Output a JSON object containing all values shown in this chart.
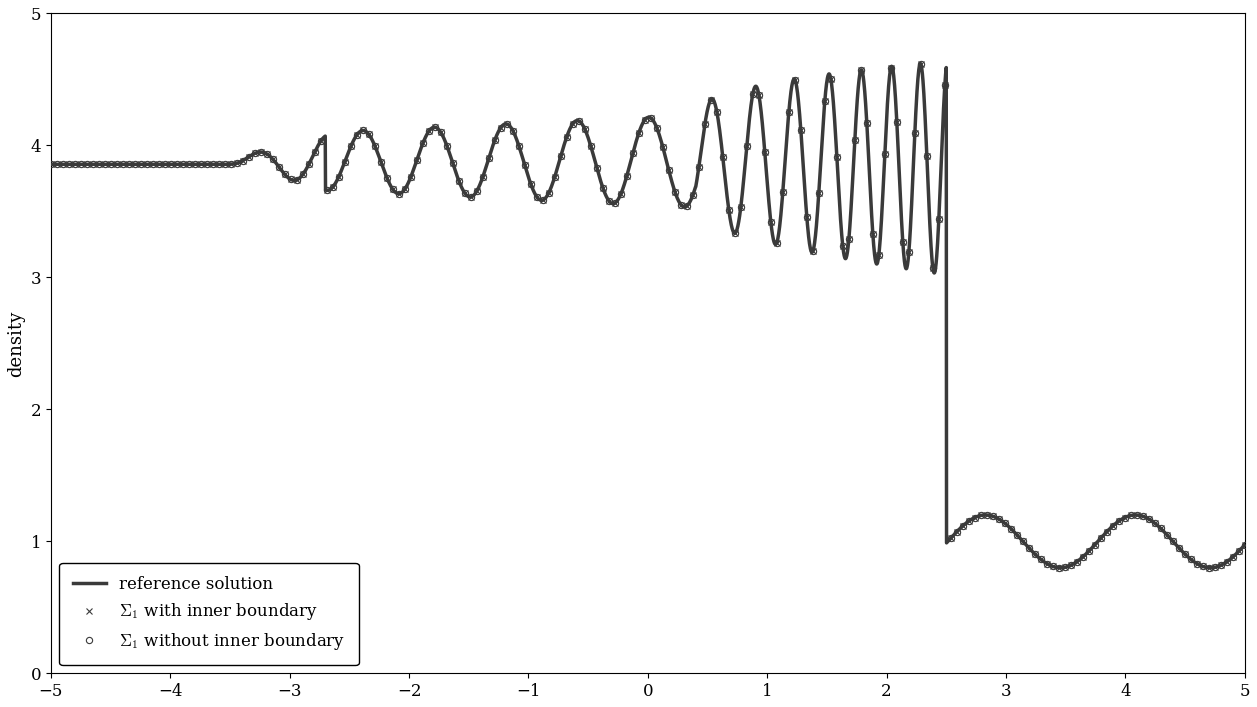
{
  "ylabel": "density",
  "xlim": [
    -5,
    5
  ],
  "ylim": [
    0,
    5
  ],
  "xticks": [
    -5,
    -4,
    -3,
    -2,
    -1,
    0,
    1,
    2,
    3,
    4,
    5
  ],
  "yticks": [
    0,
    1,
    2,
    3,
    4,
    5
  ],
  "line_color": "#3a3a3a",
  "background_color": "#ffffff",
  "legend_labels": [
    "$\\Sigma_1$ with inner boundary",
    "$\\Sigma_1$ without inner boundary",
    "reference solution"
  ],
  "ref_linewidth": 2.5,
  "scatter_markersize": 5.0,
  "legend_loc": "lower left",
  "legend_fontsize": 12,
  "ylabel_fontsize": 13,
  "tick_fontsize": 12
}
